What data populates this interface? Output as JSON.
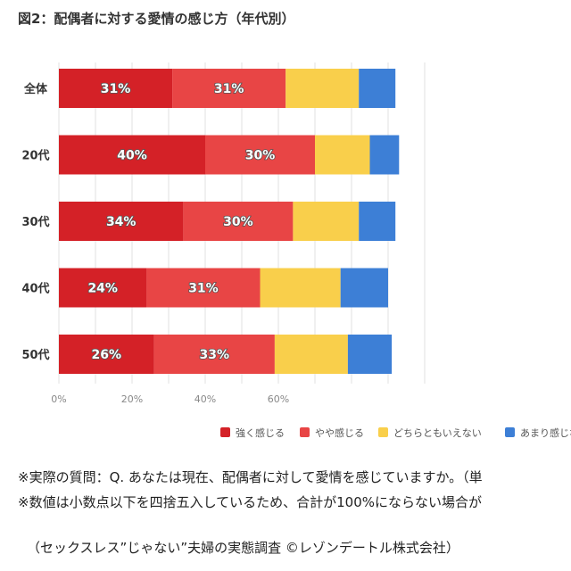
{
  "title": "図2：配偶者に対する愛情の感じ方（年代別）",
  "chart_data": {
    "type": "bar",
    "orientation": "horizontal",
    "stacked": true,
    "categories": [
      "全体",
      "20代",
      "30代",
      "40代",
      "50代"
    ],
    "series": [
      {
        "name": "強く感じる",
        "color": "#d42127",
        "values": [
          31,
          40,
          34,
          24,
          26
        ]
      },
      {
        "name": "やや感じる",
        "color": "#e84545",
        "values": [
          31,
          30,
          30,
          31,
          33
        ]
      },
      {
        "name": "どちらともいえない",
        "color": "#f9cf4b",
        "values": [
          20,
          15,
          18,
          22,
          20
        ]
      },
      {
        "name": "あまり感じない",
        "color": "#3d7fd6",
        "values": [
          10,
          8,
          10,
          13,
          12
        ]
      }
    ],
    "data_labels": [
      [
        "31%",
        "31%"
      ],
      [
        "40%",
        "30%"
      ],
      [
        "34%",
        "30%"
      ],
      [
        "24%",
        "31%"
      ],
      [
        "26%",
        "33%"
      ]
    ],
    "x_ticks": [
      "0%",
      "20%",
      "40%",
      "60%"
    ],
    "xlim": [
      0,
      100
    ],
    "grid": true,
    "legend_position": "bottom"
  },
  "notes": [
    "※実際の質問：Q. あなたは現在、配偶者に対して愛情を感じていますか。（単",
    "※数値は小数点以下を四捨五入しているため、合計が100%にならない場合が"
  ],
  "source": "（セックスレス”じゃない”夫婦の実態調査 ©レゾンデートル株式会社）"
}
